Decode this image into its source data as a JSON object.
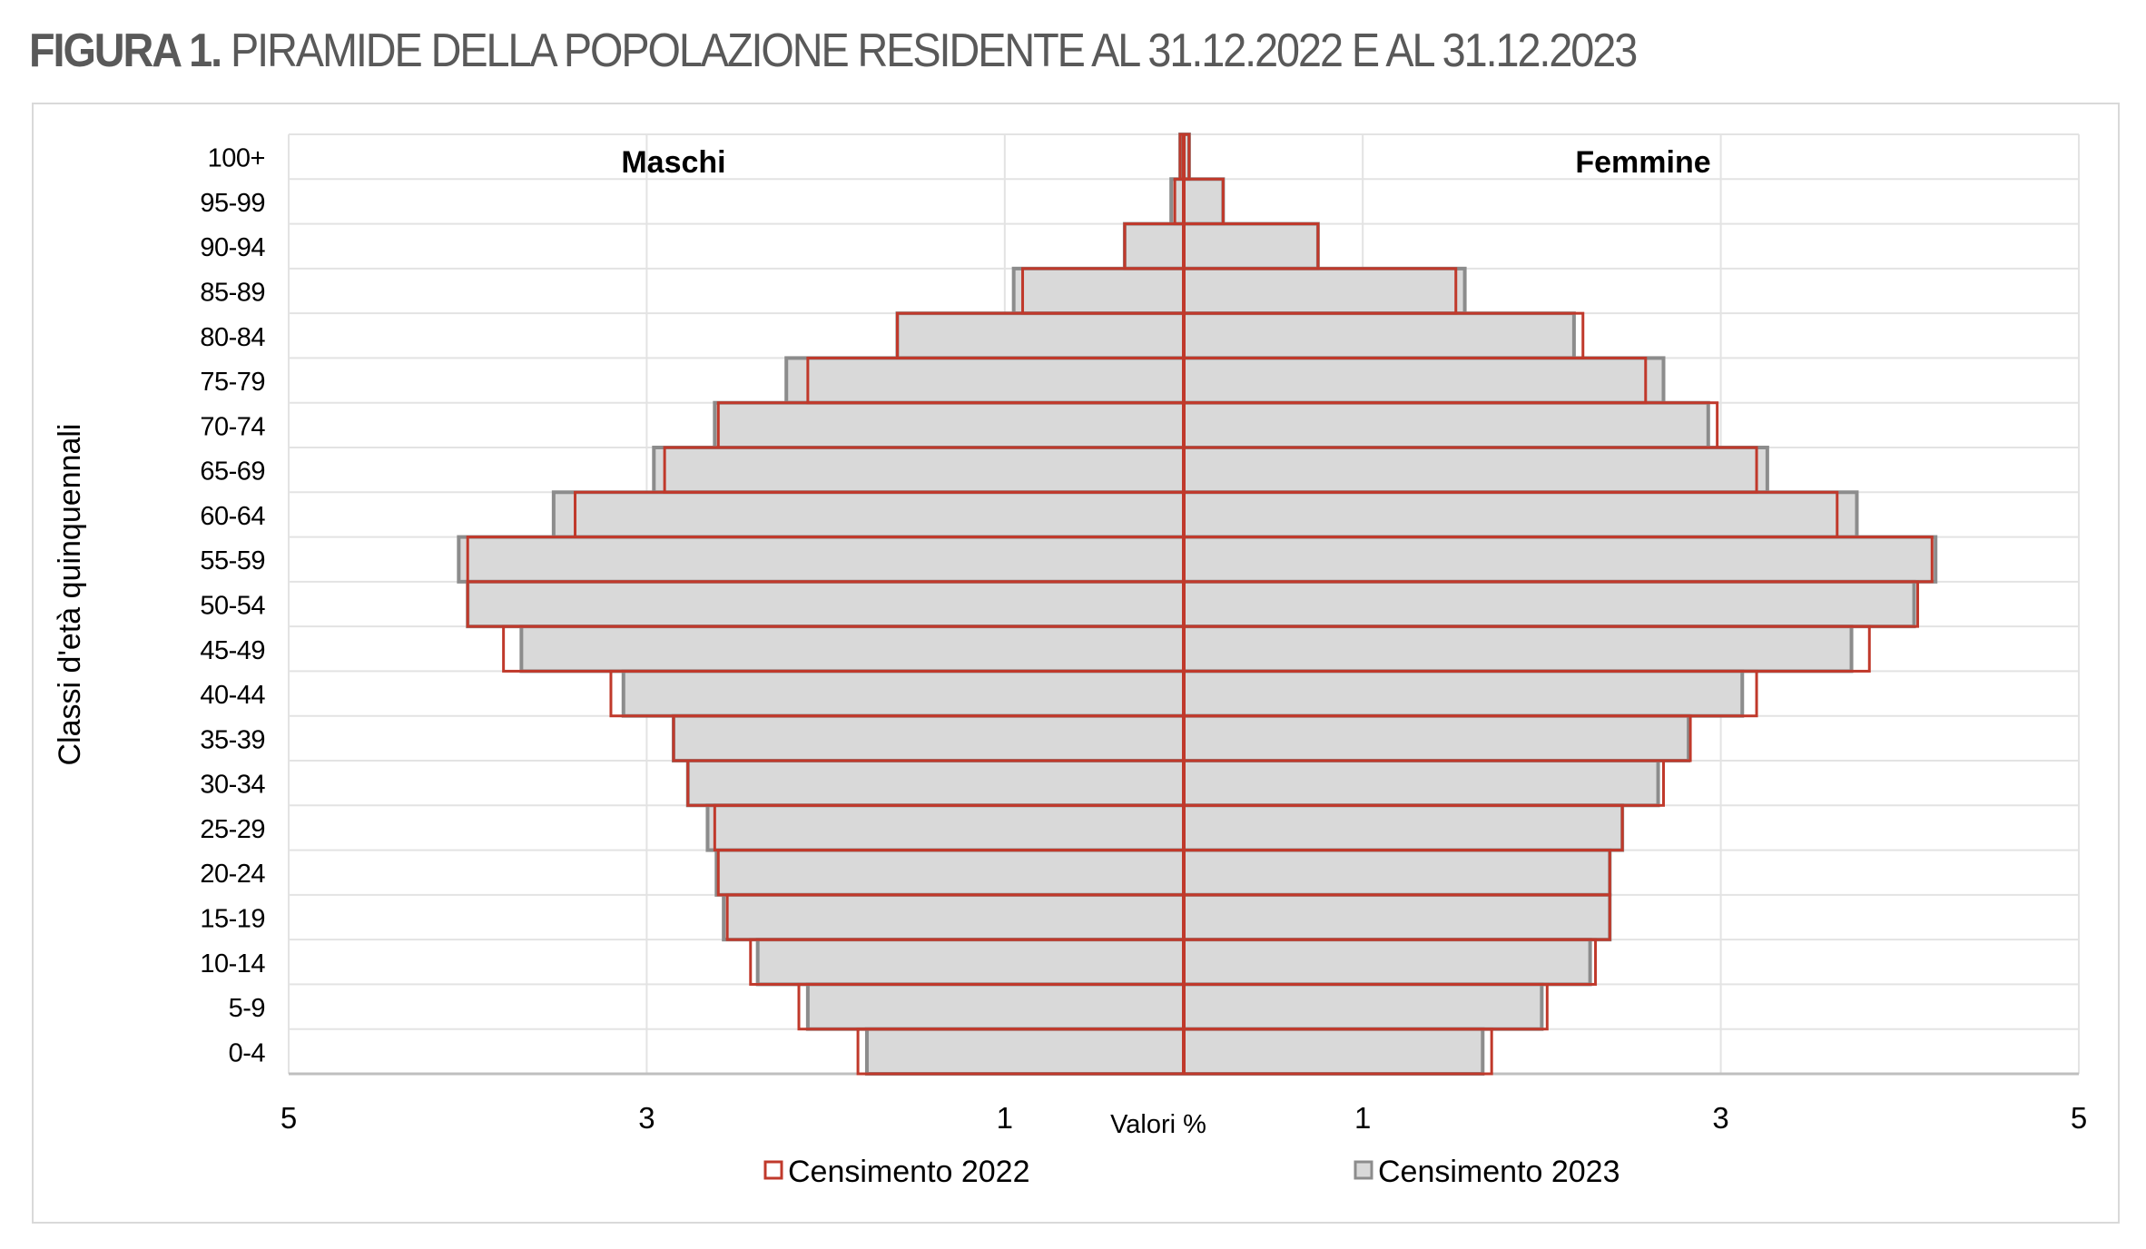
{
  "title": {
    "bold": "FIGURA 1.",
    "rest": "PIRAMIDE DELLA POPOLAZIONE RESIDENTE AL 31.12.2022 E AL 31.12.2023"
  },
  "chart_data": {
    "type": "bar",
    "orientation": "horizontal-population-pyramid",
    "xlabel": "Valori %",
    "ylabel": "Classi d'età quinquennali",
    "left_panel_label": "Maschi",
    "right_panel_label": "Femmine",
    "x_ticks": [
      "5",
      "3",
      "1",
      "1",
      "3",
      "5"
    ],
    "xlim_each_side": [
      0,
      5
    ],
    "grid": true,
    "legend_position": "bottom",
    "categories": [
      "100+",
      "95-99",
      "90-94",
      "85-89",
      "80-84",
      "75-79",
      "70-74",
      "65-69",
      "60-64",
      "55-59",
      "50-54",
      "45-49",
      "40-44",
      "35-39",
      "30-34",
      "25-29",
      "20-24",
      "15-19",
      "10-14",
      "5-9",
      "0-4"
    ],
    "series": [
      {
        "name": "Censimento 2022",
        "color": "#c0392b",
        "male": [
          0.02,
          0.05,
          0.33,
          0.9,
          1.6,
          2.1,
          2.6,
          2.9,
          3.4,
          4.0,
          4.0,
          3.8,
          3.2,
          2.85,
          2.77,
          2.62,
          2.6,
          2.55,
          2.42,
          2.15,
          1.82
        ],
        "female": [
          0.03,
          0.22,
          0.75,
          1.52,
          2.23,
          2.58,
          2.98,
          3.2,
          3.65,
          4.18,
          4.1,
          3.83,
          3.2,
          2.83,
          2.68,
          2.45,
          2.38,
          2.38,
          2.3,
          2.03,
          1.72
        ]
      },
      {
        "name": "Censimento 2023",
        "color": "#8c8c8c",
        "male": [
          0.02,
          0.07,
          0.33,
          0.95,
          1.6,
          2.22,
          2.62,
          2.96,
          3.52,
          4.05,
          4.0,
          3.7,
          3.13,
          2.85,
          2.77,
          2.66,
          2.61,
          2.57,
          2.38,
          2.1,
          1.77
        ],
        "female": [
          0.03,
          0.22,
          0.75,
          1.57,
          2.18,
          2.68,
          2.93,
          3.26,
          3.76,
          4.2,
          4.08,
          3.73,
          3.12,
          2.82,
          2.65,
          2.45,
          2.38,
          2.38,
          2.27,
          2.0,
          1.67
        ]
      }
    ]
  }
}
